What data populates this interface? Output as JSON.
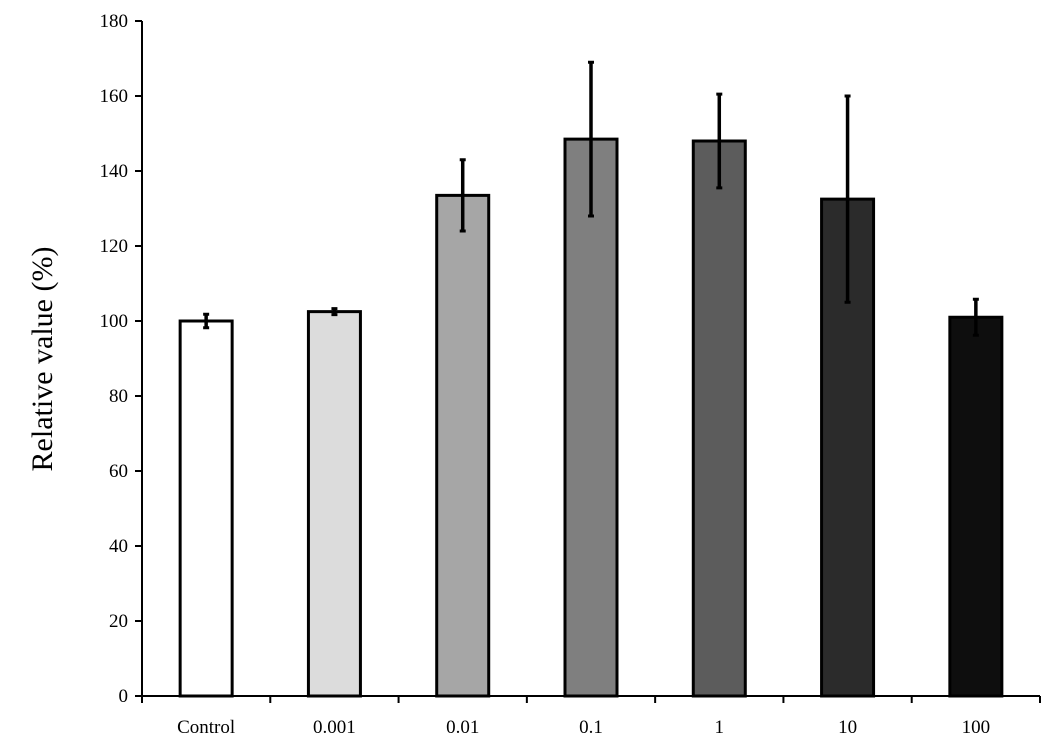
{
  "chart_data": {
    "type": "bar",
    "title": "",
    "xlabel": "",
    "ylabel": "Relative value (%)",
    "ylim": [
      0,
      180
    ],
    "yticks": [
      0,
      20,
      40,
      60,
      80,
      100,
      120,
      140,
      160,
      180
    ],
    "categories": [
      "Control",
      "0.001",
      "0.01",
      "0.1",
      "1",
      "10",
      "100"
    ],
    "values": [
      100,
      102.5,
      133.5,
      148.5,
      148,
      132.5,
      101
    ],
    "errors": [
      1.8,
      0.8,
      9.5,
      20.5,
      12.5,
      27.5,
      4.8
    ],
    "bar_colors": [
      "#ffffff",
      "#dcdcdc",
      "#a6a6a6",
      "#7f7f7f",
      "#5c5c5c",
      "#2b2b2b",
      "#0e0e0e"
    ],
    "bar_edge_color": "#000000",
    "grid": false,
    "legend": "none"
  }
}
